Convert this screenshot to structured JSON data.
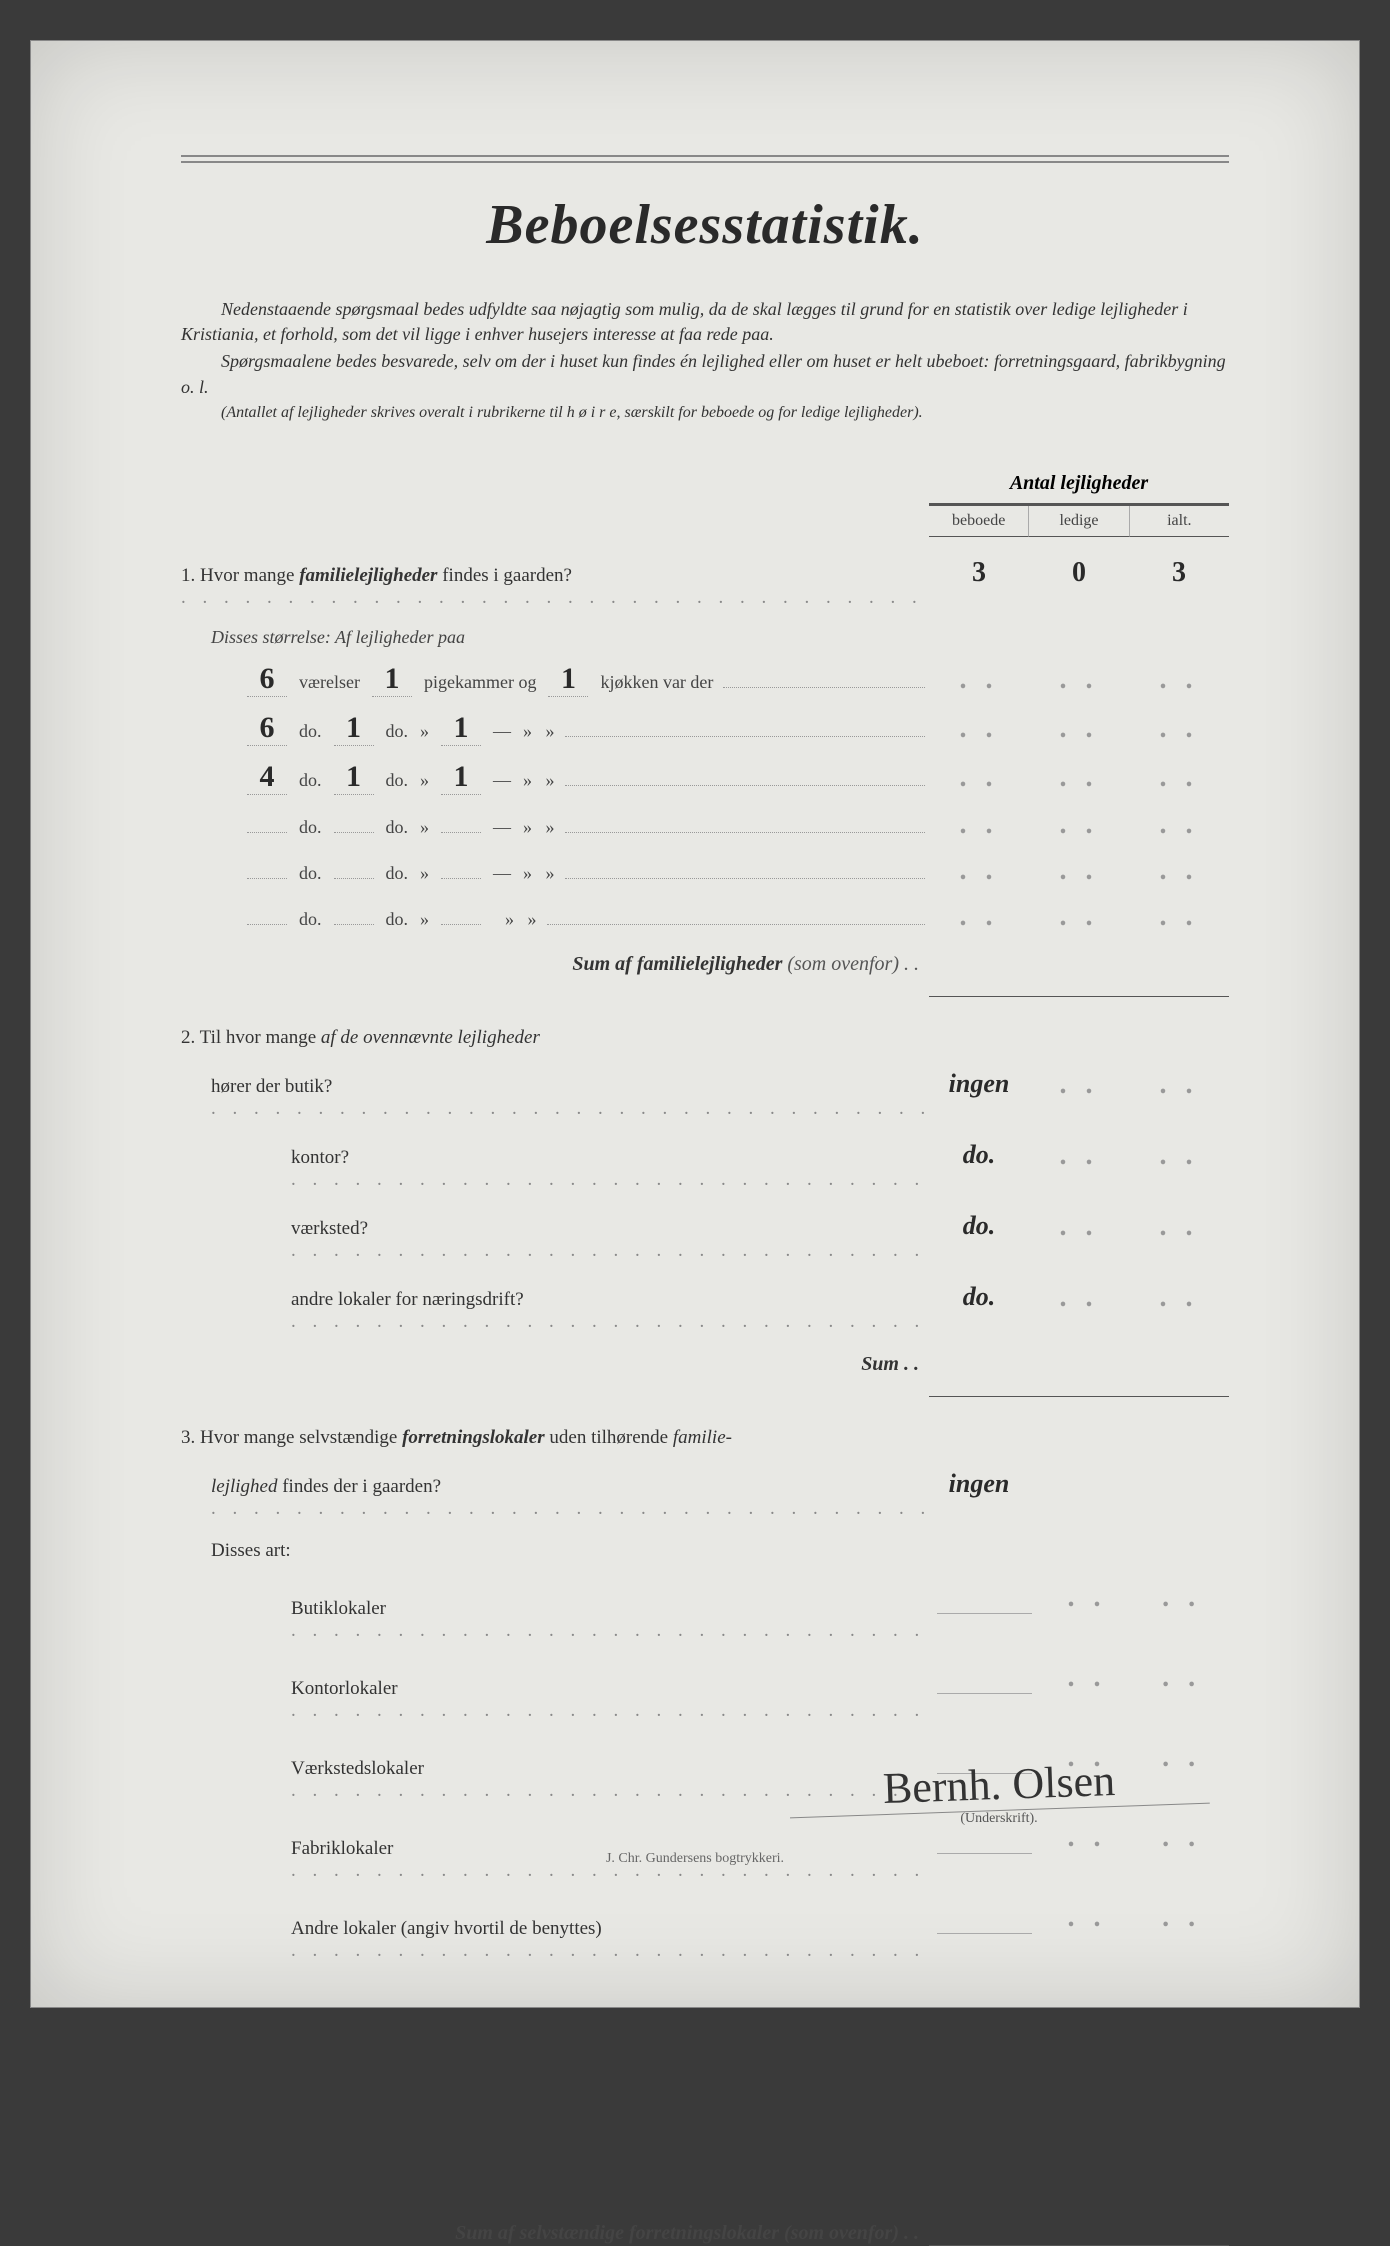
{
  "title": "Beboelsesstatistik.",
  "intro": {
    "p1": "Nedenstaaende spørgsmaal bedes udfyldte saa nøjagtig som mulig, da de skal lægges til grund for en statistik over ledige lejligheder i Kristiania, et forhold, som det vil ligge i enhver husejers interesse at faa rede paa.",
    "p2": "Spørgsmaalene bedes besvarede, selv om der i huset kun findes én lejlighed eller om huset er helt ubeboet: forretningsgaard, fabrikbygning o. l.",
    "p3": "(Antallet af lejligheder skrives overalt i rubrikerne til h ø i r e, særskilt for beboede og for ledige lejligheder)."
  },
  "table_header": {
    "title": "Antal lejligheder",
    "col1": "beboede",
    "col2": "ledige",
    "col3": "ialt."
  },
  "q1": {
    "num": "1.",
    "text": "Hvor mange ",
    "bold": "familielejligheder",
    "text2": " findes i gaarden?",
    "beboede": "3",
    "ledige": "0",
    "ialt": "3",
    "sub_label": "Disses størrelse:  Af lejligheder paa",
    "rows": [
      {
        "vaer": "6",
        "pige": "1",
        "kjok": "1",
        "label_v": "værelser",
        "label_p": "pigekammer og",
        "label_k": "kjøkken var der"
      },
      {
        "vaer": "6",
        "pige": "1",
        "kjok": "1",
        "label_v": "do.",
        "label_p": "do.",
        "label_k": "—"
      },
      {
        "vaer": "4",
        "pige": "1",
        "kjok": "1",
        "label_v": "do.",
        "label_p": "do.",
        "label_k": "—"
      },
      {
        "vaer": "",
        "pige": "",
        "kjok": "",
        "label_v": "do.",
        "label_p": "do.",
        "label_k": "—"
      },
      {
        "vaer": "",
        "pige": "",
        "kjok": "",
        "label_v": "do.",
        "label_p": "do.",
        "label_k": "—"
      },
      {
        "vaer": "",
        "pige": "",
        "kjok": "",
        "label_v": "do.",
        "label_p": "do.",
        "label_k": ""
      }
    ],
    "sum": "Sum af familielejligheder",
    "sum_note": "(som ovenfor) . ."
  },
  "q2": {
    "num": "2.",
    "text": "Til hvor mange ",
    "ital": "af de ovennævnte lejligheder",
    "sub1": "hører der butik?",
    "sub1_ans": "ingen",
    "sub2": "kontor?",
    "sub2_ans": "do.",
    "sub3": "værksted?",
    "sub3_ans": "do.",
    "sub4": "andre lokaler for næringsdrift?",
    "sub4_ans": "do.",
    "sum": "Sum . ."
  },
  "q3": {
    "num": "3.",
    "text": "Hvor mange selvstændige ",
    "bold": "forretningslokaler",
    "text2": " uden tilhørende ",
    "ital": "familie-",
    "line2": "lejlighed",
    "line2b": " findes der i gaarden?",
    "ans": "ingen",
    "sub_label": "Disses art:",
    "rows": [
      {
        "label": "Butiklokaler"
      },
      {
        "label": "Kontorlokaler"
      },
      {
        "label": "Værkstedslokaler"
      },
      {
        "label": "Fabriklokaler"
      },
      {
        "label": "Andre lokaler (angiv hvortil de benyttes)"
      }
    ]
  },
  "bottom_sum": "Sum af selvstændige forretningslokaler",
  "bottom_sum_note": "(som ovenfor) . .",
  "signature": "Bernh. Olsen",
  "sig_label": "(Underskrift).",
  "footer": "J. Chr. Gundersens bogtrykkeri."
}
